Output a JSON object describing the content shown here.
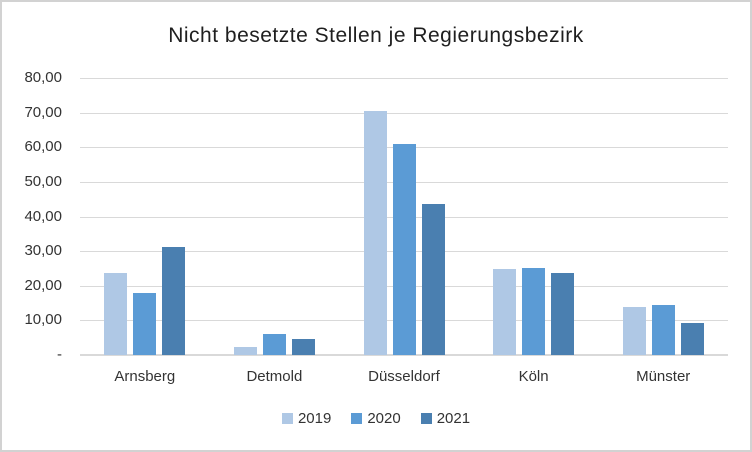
{
  "chart_data": {
    "type": "bar",
    "title": "Nicht besetzte Stellen je Regierungsbezirk",
    "categories": [
      "Arnsberg",
      "Detmold",
      "Düsseldorf",
      "Köln",
      "Münster"
    ],
    "series": [
      {
        "name": "2019",
        "color": "#AFC8E5",
        "values": [
          23.7,
          2.4,
          70.6,
          24.9,
          13.9
        ]
      },
      {
        "name": "2020",
        "color": "#5B9BD5",
        "values": [
          17.8,
          6.2,
          61.0,
          25.1,
          14.4
        ]
      },
      {
        "name": "2021",
        "color": "#4A7FB0",
        "values": [
          31.1,
          4.6,
          43.7,
          23.7,
          9.2
        ]
      }
    ],
    "ylim": [
      0,
      80
    ],
    "y_ticks": [
      {
        "value": 80,
        "label": "80,00"
      },
      {
        "value": 70,
        "label": "70,00"
      },
      {
        "value": 60,
        "label": "60,00"
      },
      {
        "value": 50,
        "label": "50,00"
      },
      {
        "value": 40,
        "label": "40,00"
      },
      {
        "value": 30,
        "label": "30,00"
      },
      {
        "value": 20,
        "label": "20,00"
      },
      {
        "value": 10,
        "label": "10,00"
      },
      {
        "value": 0,
        "label": "-"
      }
    ],
    "grid": "horizontal",
    "legend_position": "bottom",
    "colors": {
      "gridline": "#D9D9D9",
      "axis_line": "#D9D9D9",
      "text": "#333333",
      "title_text": "#1F1F1F",
      "frame_border": "#D2D2D2",
      "background": "#FFFFFF"
    }
  }
}
